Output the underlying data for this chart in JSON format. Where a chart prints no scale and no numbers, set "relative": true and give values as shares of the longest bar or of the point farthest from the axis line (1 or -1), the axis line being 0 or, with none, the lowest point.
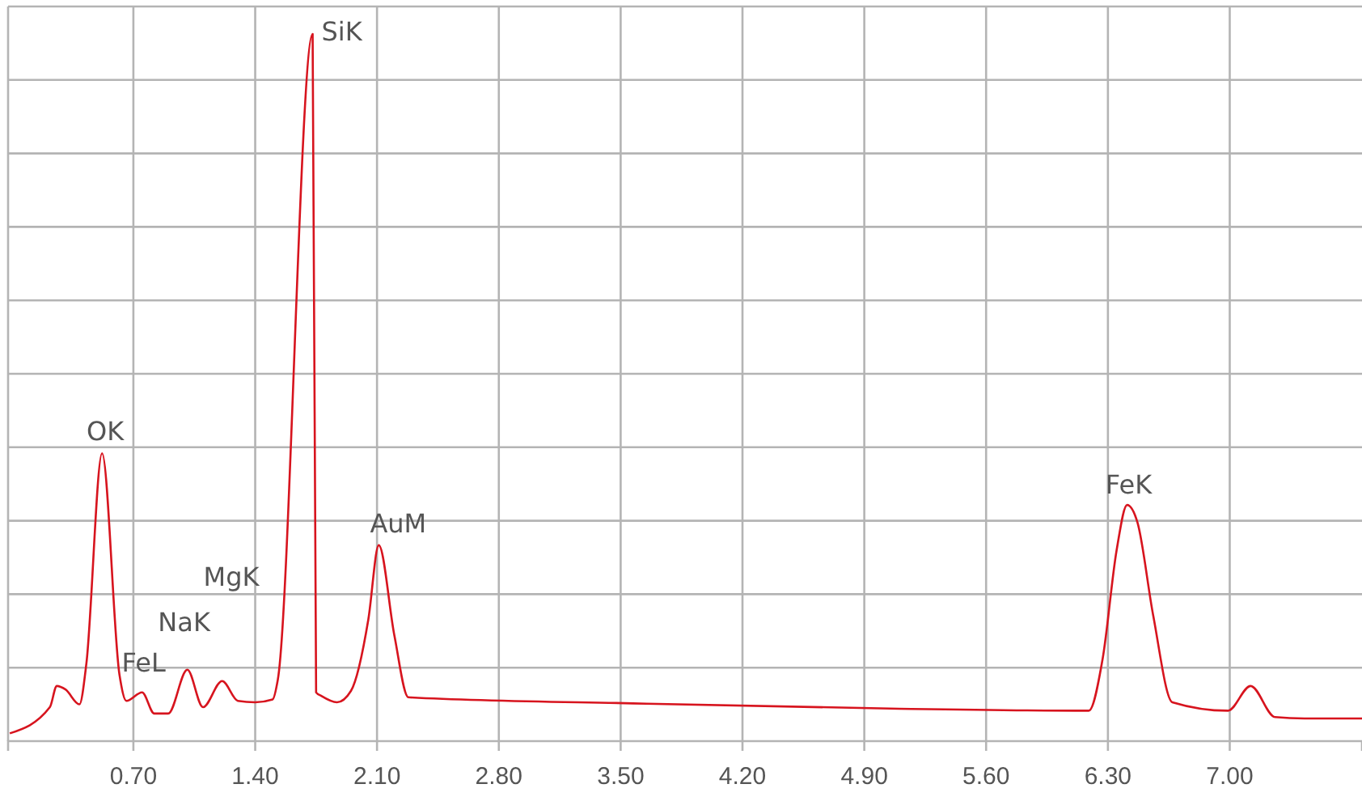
{
  "chart_data": {
    "type": "line",
    "relative": true,
    "grid": true,
    "marker": "none",
    "line_style": "solid",
    "xlim": [
      -0.02,
      7.76
    ],
    "xticks": [
      {
        "value": 0.7,
        "label": "0.70"
      },
      {
        "value": 1.4,
        "label": "1.40"
      },
      {
        "value": 2.1,
        "label": "2.10"
      },
      {
        "value": 2.8,
        "label": "2.80"
      },
      {
        "value": 3.5,
        "label": "3.50"
      },
      {
        "value": 4.2,
        "label": "4.20"
      },
      {
        "value": 4.9,
        "label": "4.90"
      },
      {
        "value": 5.6,
        "label": "5.60"
      },
      {
        "value": 6.3,
        "label": "6.30"
      },
      {
        "value": 7.0,
        "label": "7.00"
      }
    ],
    "series": [
      {
        "color": "#d7141e",
        "x": [
          -0.01,
          0.22,
          0.26,
          0.31,
          0.39,
          0.43,
          0.52,
          0.62,
          0.66,
          0.75,
          0.82,
          0.9,
          1.01,
          1.1,
          1.21,
          1.3,
          1.4,
          1.5,
          1.53,
          1.73,
          1.75,
          1.78,
          1.87,
          1.95,
          2.05,
          2.11,
          2.2,
          2.28,
          3.65,
          5.05,
          6.19,
          6.27,
          6.35,
          6.41,
          6.47,
          6.56,
          6.67,
          6.99,
          7.12,
          7.26,
          7.43,
          7.76
        ],
        "values": [
          0.011,
          0.048,
          0.078,
          0.073,
          0.052,
          0.11,
          0.407,
          0.094,
          0.057,
          0.069,
          0.039,
          0.039,
          0.101,
          0.048,
          0.085,
          0.057,
          0.055,
          0.059,
          0.087,
          1.0,
          0.069,
          0.064,
          0.055,
          0.071,
          0.172,
          0.277,
          0.149,
          0.062,
          0.053,
          0.046,
          0.043,
          0.117,
          0.27,
          0.334,
          0.309,
          0.178,
          0.055,
          0.043,
          0.078,
          0.034,
          0.032,
          0.032
        ]
      }
    ],
    "annotations": [
      {
        "text": "OK",
        "x": 0.52,
        "y": 0.407
      },
      {
        "text": "FeL",
        "x": 0.75,
        "y": 0.069
      },
      {
        "text": "NaK",
        "x": 1.01,
        "y": 0.101
      },
      "MgK",
      {
        "text": "SiK",
        "x": 1.73,
        "y": 1.0
      },
      {
        "text": "AuM",
        "x": 2.11,
        "y": 0.277
      },
      {
        "text": "FeK",
        "x": 6.41,
        "y": 0.334
      }
    ]
  }
}
